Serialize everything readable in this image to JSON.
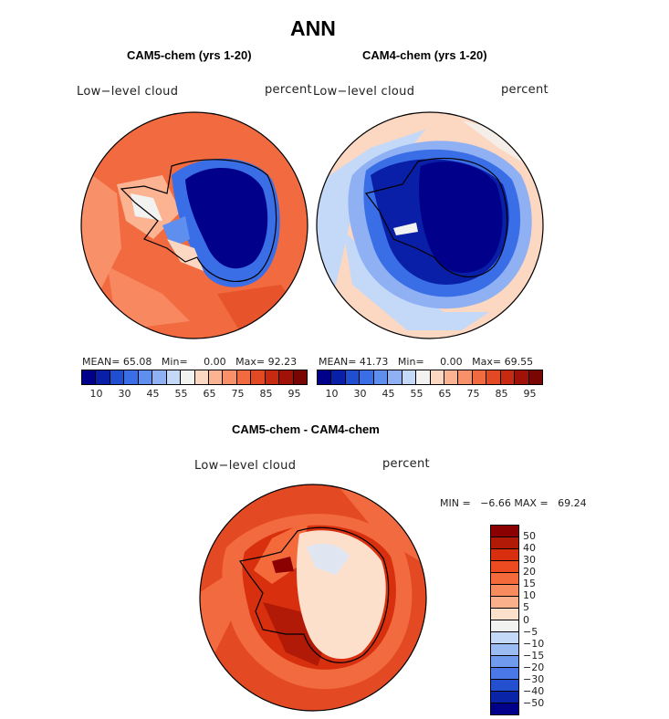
{
  "figure": {
    "title": "ANN",
    "panels": [
      {
        "title": "CAM5-chem (yrs 1-20)",
        "field_label": "Low−level cloud",
        "units": "percent",
        "mean_label": "MEAN=",
        "mean": "65.08",
        "min_label": "Min=",
        "min": "0.00",
        "max_label": "Max=",
        "max": "92.23"
      },
      {
        "title": "CAM4-chem (yrs 1-20)",
        "field_label": "Low−level cloud",
        "units": "percent",
        "mean_label": "MEAN=",
        "mean": "41.73",
        "min_label": "Min=",
        "min": "0.00",
        "max_label": "Max=",
        "max": "69.55"
      }
    ],
    "diff_panel": {
      "title": "CAM5-chem - CAM4-chem",
      "field_label": "Low−level cloud",
      "units": "percent",
      "min_label": "MIN =",
      "min": "−6.66",
      "max_label": "MAX =",
      "max": "69.24"
    }
  },
  "colorbar_abs": {
    "tick_labels": [
      "10",
      "30",
      "45",
      "55",
      "65",
      "75",
      "85",
      "95"
    ],
    "colors": [
      "#00008b",
      "#0a1fa8",
      "#1f4fd0",
      "#3a6ee6",
      "#5f8fee",
      "#8fb1f3",
      "#c4d9f7",
      "#f2f2f0",
      "#fcd7c1",
      "#fbb392",
      "#f89069",
      "#f26a3f",
      "#e34a24",
      "#c72a10",
      "#a01208",
      "#7a0604"
    ]
  },
  "colorbar_diff": {
    "tick_labels": [
      "50",
      "40",
      "30",
      "20",
      "15",
      "10",
      "5",
      "0",
      "−5",
      "−10",
      "−15",
      "−20",
      "−30",
      "−40",
      "−50"
    ],
    "colors": [
      "#8b0000",
      "#b01a06",
      "#d8300f",
      "#ec4a20",
      "#f56a3a",
      "#f88c5e",
      "#fbb08c",
      "#fde0cc",
      "#f2f2f0",
      "#c4d9f7",
      "#9bbcf2",
      "#6f9aee",
      "#4a78e6",
      "#2450d0",
      "#0a24a8",
      "#00008b"
    ]
  }
}
